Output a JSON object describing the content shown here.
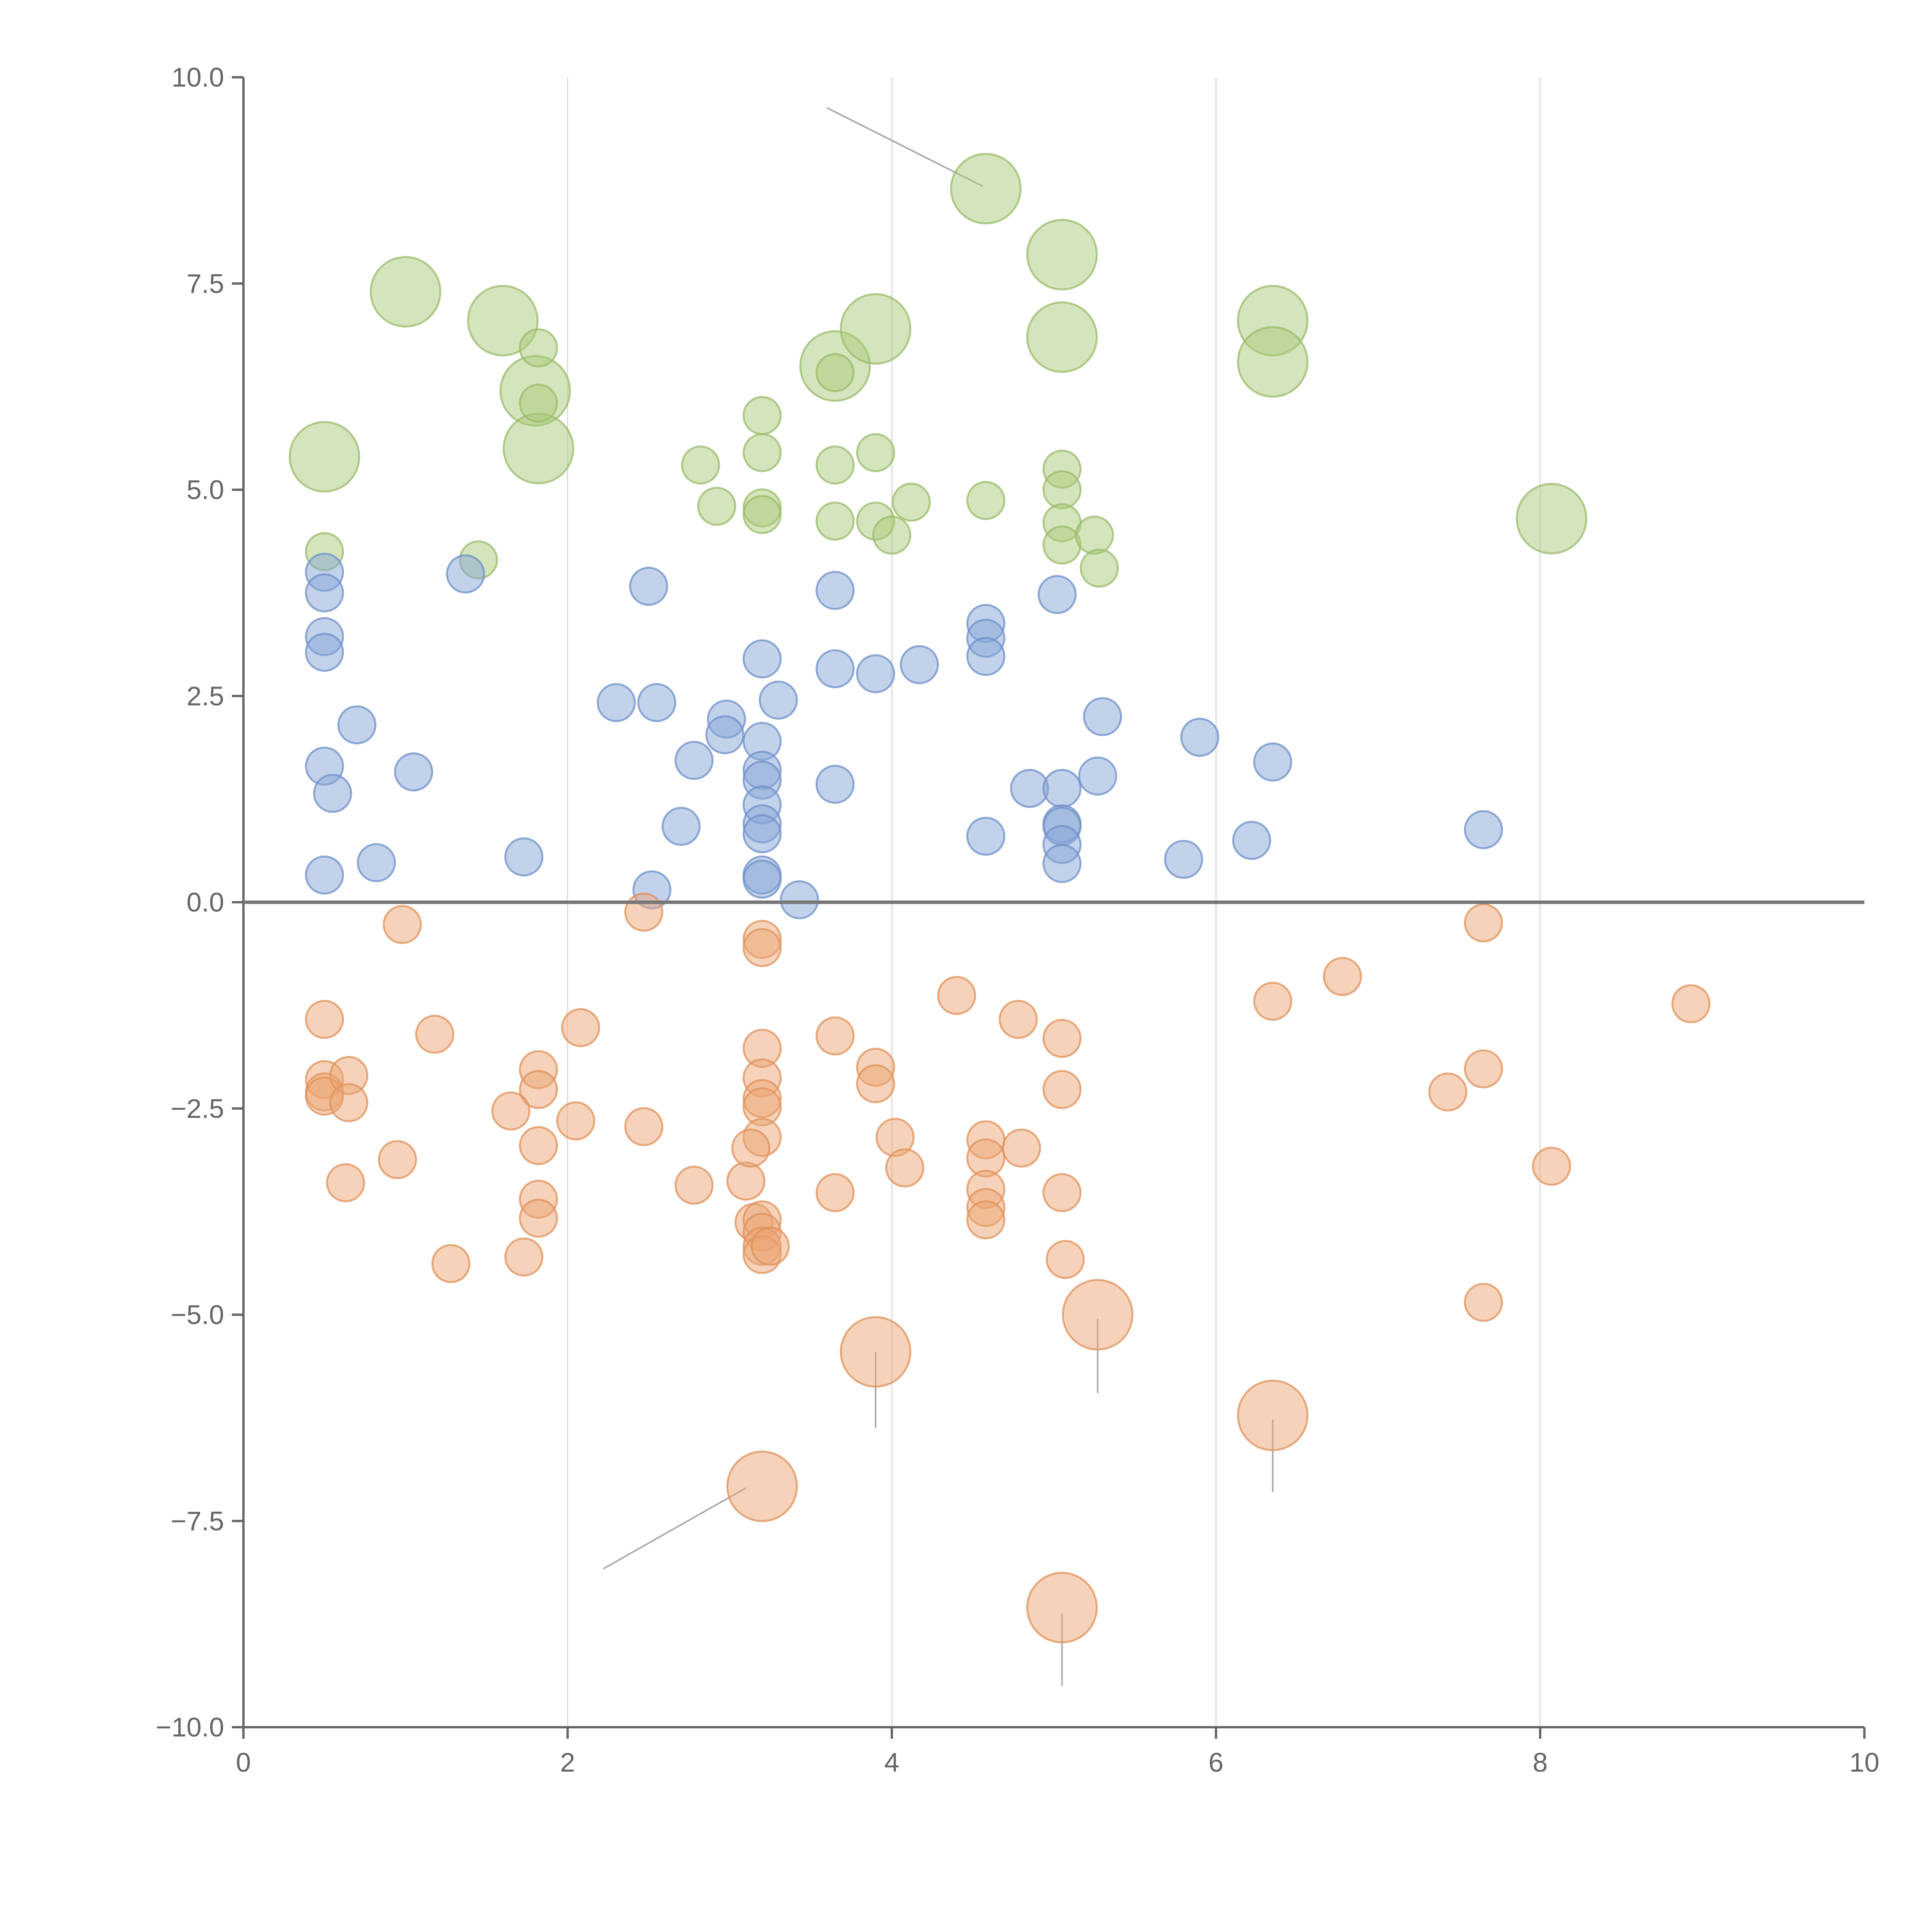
{
  "chart_data": {
    "type": "scatter",
    "title": "",
    "xlabel": "",
    "ylabel": "",
    "xlim": [
      0,
      10
    ],
    "ylim": [
      -10,
      10
    ],
    "grid": "vertical",
    "x_ticks": [
      "0",
      "2",
      "4",
      "6",
      "8",
      "10"
    ],
    "x_tick_values": [
      0,
      2,
      4,
      6,
      8,
      10
    ],
    "y_ticks": [
      "10.0",
      "7.5",
      "5.0",
      "2.5",
      "0.0",
      "−2.5",
      "−5.0",
      "−7.5",
      "−10.0"
    ],
    "y_tick_values": [
      10,
      7.5,
      5,
      2.5,
      0,
      -2.5,
      -5,
      -7.5,
      -10
    ],
    "reference_line_y": 0,
    "series": [
      {
        "name": "green",
        "color": "#a9c97a",
        "stroke": "#98bb68",
        "points": [
          {
            "x": 1.0,
            "y": 7.4,
            "s": 3
          },
          {
            "x": 1.6,
            "y": 7.05,
            "s": 3
          },
          {
            "x": 1.8,
            "y": 6.2,
            "s": 3
          },
          {
            "x": 1.82,
            "y": 5.5,
            "s": 3
          },
          {
            "x": 0.5,
            "y": 5.4,
            "s": 3
          },
          {
            "x": 3.65,
            "y": 6.5,
            "s": 3
          },
          {
            "x": 3.9,
            "y": 6.95,
            "s": 3
          },
          {
            "x": 4.58,
            "y": 8.65,
            "s": 3
          },
          {
            "x": 5.05,
            "y": 7.85,
            "s": 3
          },
          {
            "x": 5.05,
            "y": 6.85,
            "s": 3
          },
          {
            "x": 6.35,
            "y": 7.05,
            "s": 3
          },
          {
            "x": 6.35,
            "y": 6.55,
            "s": 3
          },
          {
            "x": 8.07,
            "y": 4.65,
            "s": 3
          },
          {
            "x": 1.82,
            "y": 6.72,
            "s": 1
          },
          {
            "x": 1.82,
            "y": 6.05,
            "s": 1
          },
          {
            "x": 0.5,
            "y": 4.25,
            "s": 1
          },
          {
            "x": 1.45,
            "y": 4.15,
            "s": 1
          },
          {
            "x": 2.82,
            "y": 5.3,
            "s": 1
          },
          {
            "x": 2.92,
            "y": 4.8,
            "s": 1
          },
          {
            "x": 3.2,
            "y": 5.9,
            "s": 1
          },
          {
            "x": 3.2,
            "y": 5.45,
            "s": 1
          },
          {
            "x": 3.2,
            "y": 4.78,
            "s": 1
          },
          {
            "x": 3.2,
            "y": 4.7,
            "s": 1
          },
          {
            "x": 3.65,
            "y": 6.42,
            "s": 1
          },
          {
            "x": 3.65,
            "y": 5.3,
            "s": 1
          },
          {
            "x": 3.65,
            "y": 4.62,
            "s": 1
          },
          {
            "x": 3.9,
            "y": 5.45,
            "s": 1
          },
          {
            "x": 3.9,
            "y": 4.62,
            "s": 1
          },
          {
            "x": 4.0,
            "y": 4.45,
            "s": 1
          },
          {
            "x": 4.12,
            "y": 4.85,
            "s": 1
          },
          {
            "x": 4.58,
            "y": 4.87,
            "s": 1
          },
          {
            "x": 5.05,
            "y": 5.25,
            "s": 1
          },
          {
            "x": 5.05,
            "y": 5.0,
            "s": 1
          },
          {
            "x": 5.05,
            "y": 4.6,
            "s": 1
          },
          {
            "x": 5.05,
            "y": 4.33,
            "s": 1
          },
          {
            "x": 5.25,
            "y": 4.45,
            "s": 1
          },
          {
            "x": 5.28,
            "y": 4.05,
            "s": 1
          }
        ]
      },
      {
        "name": "blue",
        "color": "#85a5d6",
        "stroke": "#6d8fc8",
        "points": [
          {
            "x": 0.5,
            "y": 4.0,
            "s": 1
          },
          {
            "x": 0.5,
            "y": 3.75,
            "s": 1
          },
          {
            "x": 0.5,
            "y": 3.22,
            "s": 1
          },
          {
            "x": 0.5,
            "y": 3.03,
            "s": 1
          },
          {
            "x": 0.5,
            "y": 1.65,
            "s": 1
          },
          {
            "x": 0.5,
            "y": 0.33,
            "s": 1
          },
          {
            "x": 0.55,
            "y": 1.32,
            "s": 1
          },
          {
            "x": 0.7,
            "y": 2.15,
            "s": 1
          },
          {
            "x": 0.82,
            "y": 0.48,
            "s": 1
          },
          {
            "x": 1.05,
            "y": 1.58,
            "s": 1
          },
          {
            "x": 1.37,
            "y": 3.98,
            "s": 1
          },
          {
            "x": 1.73,
            "y": 0.55,
            "s": 1
          },
          {
            "x": 2.3,
            "y": 2.42,
            "s": 1
          },
          {
            "x": 2.5,
            "y": 3.83,
            "s": 1
          },
          {
            "x": 2.52,
            "y": 0.15,
            "s": 1
          },
          {
            "x": 2.55,
            "y": 2.42,
            "s": 1
          },
          {
            "x": 2.7,
            "y": 0.92,
            "s": 1
          },
          {
            "x": 2.78,
            "y": 1.72,
            "s": 1
          },
          {
            "x": 2.98,
            "y": 2.22,
            "s": 1
          },
          {
            "x": 2.97,
            "y": 2.03,
            "s": 1
          },
          {
            "x": 3.2,
            "y": 2.95,
            "s": 1
          },
          {
            "x": 3.2,
            "y": 1.95,
            "s": 1
          },
          {
            "x": 3.2,
            "y": 1.6,
            "s": 1
          },
          {
            "x": 3.2,
            "y": 1.48,
            "s": 1
          },
          {
            "x": 3.2,
            "y": 1.18,
            "s": 1
          },
          {
            "x": 3.2,
            "y": 0.95,
            "s": 1
          },
          {
            "x": 3.2,
            "y": 0.83,
            "s": 1
          },
          {
            "x": 3.2,
            "y": 0.33,
            "s": 1
          },
          {
            "x": 3.2,
            "y": 0.28,
            "s": 1
          },
          {
            "x": 3.3,
            "y": 2.45,
            "s": 1
          },
          {
            "x": 3.43,
            "y": 0.03,
            "s": 1
          },
          {
            "x": 3.65,
            "y": 3.78,
            "s": 1
          },
          {
            "x": 3.65,
            "y": 2.83,
            "s": 1
          },
          {
            "x": 3.65,
            "y": 1.43,
            "s": 1
          },
          {
            "x": 3.9,
            "y": 2.77,
            "s": 1
          },
          {
            "x": 4.17,
            "y": 2.88,
            "s": 1
          },
          {
            "x": 4.58,
            "y": 3.38,
            "s": 1
          },
          {
            "x": 4.58,
            "y": 3.2,
            "s": 1
          },
          {
            "x": 4.58,
            "y": 2.98,
            "s": 1
          },
          {
            "x": 4.58,
            "y": 0.8,
            "s": 1
          },
          {
            "x": 4.85,
            "y": 1.38,
            "s": 1
          },
          {
            "x": 5.02,
            "y": 3.73,
            "s": 1
          },
          {
            "x": 5.05,
            "y": 1.38,
            "s": 1
          },
          {
            "x": 5.05,
            "y": 0.95,
            "s": 1
          },
          {
            "x": 5.05,
            "y": 0.92,
            "s": 1
          },
          {
            "x": 5.05,
            "y": 0.7,
            "s": 1
          },
          {
            "x": 5.05,
            "y": 0.47,
            "s": 1
          },
          {
            "x": 5.27,
            "y": 1.53,
            "s": 1
          },
          {
            "x": 5.3,
            "y": 2.25,
            "s": 1
          },
          {
            "x": 5.8,
            "y": 0.52,
            "s": 1
          },
          {
            "x": 5.9,
            "y": 2.0,
            "s": 1
          },
          {
            "x": 6.22,
            "y": 0.75,
            "s": 1
          },
          {
            "x": 6.35,
            "y": 1.7,
            "s": 1
          },
          {
            "x": 7.65,
            "y": 0.88,
            "s": 1
          }
        ]
      },
      {
        "name": "orange",
        "color": "#eba673",
        "stroke": "#df9059",
        "points": [
          {
            "x": 3.9,
            "y": -5.45,
            "s": 3
          },
          {
            "x": 5.27,
            "y": -5.0,
            "s": 3
          },
          {
            "x": 3.2,
            "y": -7.08,
            "s": 3
          },
          {
            "x": 6.35,
            "y": -6.22,
            "s": 3
          },
          {
            "x": 5.05,
            "y": -8.55,
            "s": 3
          },
          {
            "x": 0.98,
            "y": -0.27,
            "s": 1
          },
          {
            "x": 2.47,
            "y": -0.12,
            "s": 1
          },
          {
            "x": 3.2,
            "y": -0.45,
            "s": 1
          },
          {
            "x": 3.2,
            "y": -0.55,
            "s": 1
          },
          {
            "x": 7.65,
            "y": -0.25,
            "s": 1
          },
          {
            "x": 0.5,
            "y": -1.42,
            "s": 1
          },
          {
            "x": 1.18,
            "y": -1.6,
            "s": 1
          },
          {
            "x": 2.08,
            "y": -1.52,
            "s": 1
          },
          {
            "x": 3.2,
            "y": -1.77,
            "s": 1
          },
          {
            "x": 3.65,
            "y": -1.62,
            "s": 1
          },
          {
            "x": 4.4,
            "y": -1.13,
            "s": 1
          },
          {
            "x": 4.78,
            "y": -1.42,
            "s": 1
          },
          {
            "x": 5.05,
            "y": -1.65,
            "s": 1
          },
          {
            "x": 6.35,
            "y": -1.2,
            "s": 1
          },
          {
            "x": 6.78,
            "y": -0.9,
            "s": 1
          },
          {
            "x": 8.93,
            "y": -1.23,
            "s": 1
          },
          {
            "x": 0.5,
            "y": -2.15,
            "s": 1
          },
          {
            "x": 0.5,
            "y": -2.3,
            "s": 1
          },
          {
            "x": 0.5,
            "y": -2.35,
            "s": 1
          },
          {
            "x": 0.65,
            "y": -2.1,
            "s": 1
          },
          {
            "x": 0.65,
            "y": -2.43,
            "s": 1
          },
          {
            "x": 1.82,
            "y": -2.03,
            "s": 1
          },
          {
            "x": 1.82,
            "y": -2.27,
            "s": 1
          },
          {
            "x": 1.65,
            "y": -2.53,
            "s": 1
          },
          {
            "x": 2.05,
            "y": -2.65,
            "s": 1
          },
          {
            "x": 2.47,
            "y": -2.72,
            "s": 1
          },
          {
            "x": 3.2,
            "y": -2.13,
            "s": 1
          },
          {
            "x": 3.2,
            "y": -2.38,
            "s": 1
          },
          {
            "x": 3.2,
            "y": -2.48,
            "s": 1
          },
          {
            "x": 3.9,
            "y": -2.0,
            "s": 1
          },
          {
            "x": 3.9,
            "y": -2.2,
            "s": 1
          },
          {
            "x": 5.05,
            "y": -2.27,
            "s": 1
          },
          {
            "x": 7.43,
            "y": -2.3,
            "s": 1
          },
          {
            "x": 7.65,
            "y": -2.02,
            "s": 1
          },
          {
            "x": 0.95,
            "y": -3.12,
            "s": 1
          },
          {
            "x": 0.63,
            "y": -3.4,
            "s": 1
          },
          {
            "x": 1.82,
            "y": -2.95,
            "s": 1
          },
          {
            "x": 1.82,
            "y": -3.6,
            "s": 1
          },
          {
            "x": 1.82,
            "y": -3.83,
            "s": 1
          },
          {
            "x": 2.78,
            "y": -3.43,
            "s": 1
          },
          {
            "x": 3.1,
            "y": -3.38,
            "s": 1
          },
          {
            "x": 3.2,
            "y": -2.85,
            "s": 1
          },
          {
            "x": 3.13,
            "y": -2.98,
            "s": 1
          },
          {
            "x": 3.65,
            "y": -3.52,
            "s": 1
          },
          {
            "x": 4.02,
            "y": -2.85,
            "s": 1
          },
          {
            "x": 4.08,
            "y": -3.22,
            "s": 1
          },
          {
            "x": 4.58,
            "y": -2.88,
            "s": 1
          },
          {
            "x": 4.58,
            "y": -3.1,
            "s": 1
          },
          {
            "x": 4.58,
            "y": -3.48,
            "s": 1
          },
          {
            "x": 4.58,
            "y": -3.7,
            "s": 1
          },
          {
            "x": 4.58,
            "y": -3.85,
            "s": 1
          },
          {
            "x": 4.8,
            "y": -2.98,
            "s": 1
          },
          {
            "x": 5.05,
            "y": -3.52,
            "s": 1
          },
          {
            "x": 8.07,
            "y": -3.2,
            "s": 1
          },
          {
            "x": 1.28,
            "y": -4.38,
            "s": 1
          },
          {
            "x": 1.73,
            "y": -4.3,
            "s": 1
          },
          {
            "x": 3.15,
            "y": -3.88,
            "s": 1
          },
          {
            "x": 3.2,
            "y": -3.85,
            "s": 1
          },
          {
            "x": 3.2,
            "y": -4.0,
            "s": 1
          },
          {
            "x": 3.2,
            "y": -4.17,
            "s": 1
          },
          {
            "x": 3.2,
            "y": -4.27,
            "s": 1
          },
          {
            "x": 3.25,
            "y": -4.17,
            "s": 1
          },
          {
            "x": 5.07,
            "y": -4.33,
            "s": 1
          },
          {
            "x": 7.65,
            "y": -4.85,
            "s": 1
          }
        ]
      }
    ],
    "leader_lines": [
      {
        "series": "green",
        "from": [
          4.56,
          8.68
        ],
        "to": [
          3.6,
          9.63
        ]
      },
      {
        "series": "orange",
        "from": [
          3.1,
          -7.1
        ],
        "to": [
          2.22,
          -8.08
        ]
      },
      {
        "series": "orange",
        "from": [
          3.9,
          -5.45
        ],
        "to": [
          3.9,
          -6.37
        ]
      },
      {
        "series": "orange",
        "from": [
          5.27,
          -5.05
        ],
        "to": [
          5.27,
          -5.95
        ]
      },
      {
        "series": "orange",
        "from": [
          6.35,
          -6.27
        ],
        "to": [
          6.35,
          -7.15
        ]
      },
      {
        "series": "orange",
        "from": [
          5.05,
          -8.62
        ],
        "to": [
          5.05,
          -9.5
        ]
      }
    ]
  }
}
